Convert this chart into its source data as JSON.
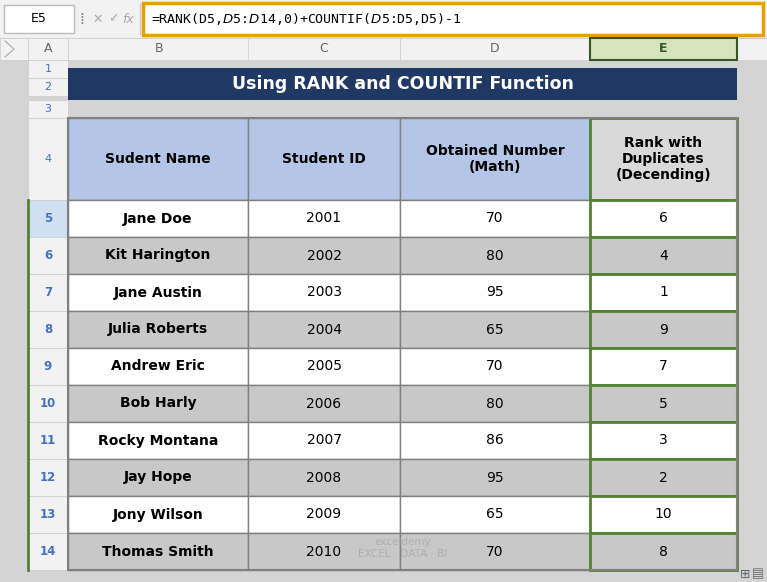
{
  "title": "Using RANK and COUNTIF Function",
  "title_bg": "#1F3864",
  "title_color": "#FFFFFF",
  "formula_bar_text": "=RANK(D5,$D$5:$D$14,0)+COUNTIF($D$5:D5,D5)-1",
  "formula_cell": "E5",
  "col_headers": [
    "Sudent Name",
    "Student ID",
    "Obtained Number\n(Math)",
    "Rank with\nDuplicates\n(Decending)"
  ],
  "header_bg": "#B4C6E7",
  "header_last_bg": "#D9D9D9",
  "data": [
    [
      "Jane Doe",
      "2001",
      "70",
      "6"
    ],
    [
      "Kit Harington",
      "2002",
      "80",
      "4"
    ],
    [
      "Jane Austin",
      "2003",
      "95",
      "1"
    ],
    [
      "Julia Roberts",
      "2004",
      "65",
      "9"
    ],
    [
      "Andrew Eric",
      "2005",
      "70",
      "7"
    ],
    [
      "Bob Harly",
      "2006",
      "80",
      "5"
    ],
    [
      "Rocky Montana",
      "2007",
      "86",
      "3"
    ],
    [
      "Jay Hope",
      "2008",
      "95",
      "2"
    ],
    [
      "Jony Wilson",
      "2009",
      "65",
      "10"
    ],
    [
      "Thomas Smith",
      "2010",
      "70",
      "8"
    ]
  ],
  "row_bg_odd": "#FFFFFF",
  "row_bg_even": "#C8C8C8",
  "last_col_border_color": "#548235",
  "cell_border_color": "#808080",
  "outer_border_color": "#808080",
  "row_num_color": "#4472C4",
  "row_num_selected_bg": "#D0E0F0",
  "fig_bg": "#D4D4D4",
  "excel_col_header_bg": "#F2F2F2",
  "excel_col_header_sel_bg": "#DDEEDD",
  "watermark_color": "#AAAAAA",
  "watermark": "exceldemy\nEXCEL · DATA · BI"
}
